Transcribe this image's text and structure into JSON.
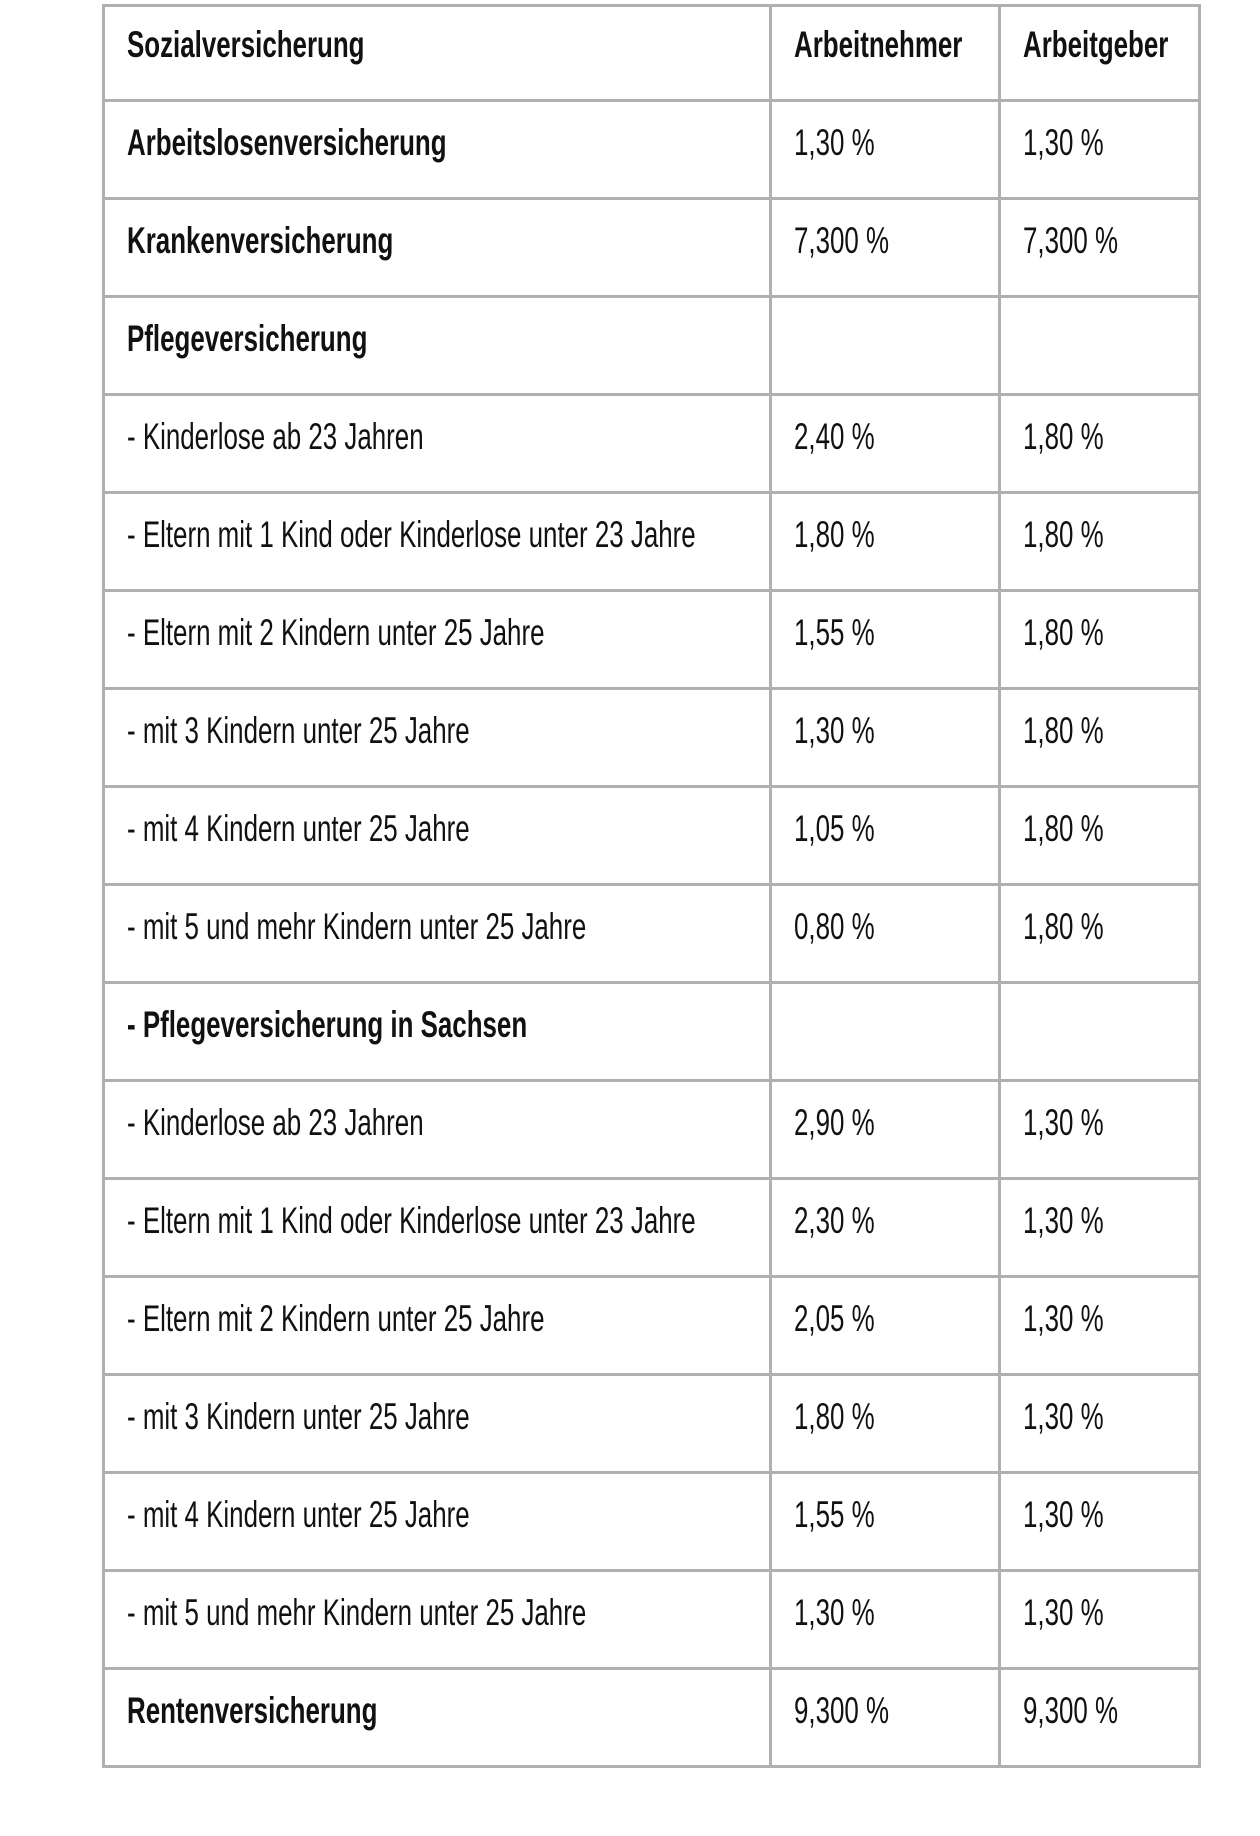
{
  "colors": {
    "background": "#ffffff",
    "border": "#b0b0b0",
    "text": "#111111"
  },
  "chart_data": {
    "type": "table",
    "columns": [
      "Sozialversicherung",
      "Arbeitnehmer",
      "Arbeitgeber"
    ],
    "rows": [
      {
        "label": "Arbeitslosenversicherung",
        "bold": true,
        "values": [
          "1,30 %",
          "1,30 %"
        ]
      },
      {
        "label": "Krankenversicherung",
        "bold": true,
        "values": [
          "7,300 %",
          "7,300 %"
        ]
      },
      {
        "label": "Pflegeversicherung",
        "bold": true,
        "values": [
          "",
          ""
        ]
      },
      {
        "label": "- Kinderlose ab 23 Jahren",
        "bold": false,
        "values": [
          "2,40 %",
          "1,80 %"
        ]
      },
      {
        "label": "- Eltern mit 1 Kind oder Kinderlose unter 23 Jahre",
        "bold": false,
        "values": [
          "1,80 %",
          "1,80 %"
        ]
      },
      {
        "label": "- Eltern mit 2 Kindern unter 25 Jahre",
        "bold": false,
        "values": [
          "1,55 %",
          "1,80 %"
        ]
      },
      {
        "label": "- mit 3 Kindern unter 25 Jahre",
        "bold": false,
        "values": [
          "1,30 %",
          "1,80 %"
        ]
      },
      {
        "label": "- mit 4 Kindern unter 25 Jahre",
        "bold": false,
        "values": [
          "1,05 %",
          "1,80 %"
        ]
      },
      {
        "label": "- mit 5 und mehr Kindern unter 25 Jahre",
        "bold": false,
        "values": [
          "0,80 %",
          "1,80 %"
        ]
      },
      {
        "label": "- Pflegeversicherung in Sachsen",
        "bold": true,
        "values": [
          "",
          ""
        ]
      },
      {
        "label": "- Kinderlose ab 23 Jahren",
        "bold": false,
        "values": [
          "2,90 %",
          "1,30 %"
        ]
      },
      {
        "label": "- Eltern mit 1 Kind oder Kinderlose unter 23 Jahre",
        "bold": false,
        "values": [
          "2,30 %",
          "1,30 %"
        ]
      },
      {
        "label": "- Eltern mit 2 Kindern unter 25 Jahre",
        "bold": false,
        "values": [
          "2,05 %",
          "1,30 %"
        ]
      },
      {
        "label": "- mit 3 Kindern unter 25 Jahre",
        "bold": false,
        "values": [
          "1,80 %",
          "1,30 %"
        ]
      },
      {
        "label": "- mit 4 Kindern unter 25 Jahre",
        "bold": false,
        "values": [
          "1,55 %",
          "1,30 %"
        ]
      },
      {
        "label": "- mit 5 und mehr Kindern unter 25 Jahre",
        "bold": false,
        "values": [
          "1,30 %",
          "1,30 %"
        ]
      },
      {
        "label": "Rentenversicherung",
        "bold": true,
        "values": [
          "9,300 %",
          "9,300 %"
        ]
      }
    ]
  }
}
